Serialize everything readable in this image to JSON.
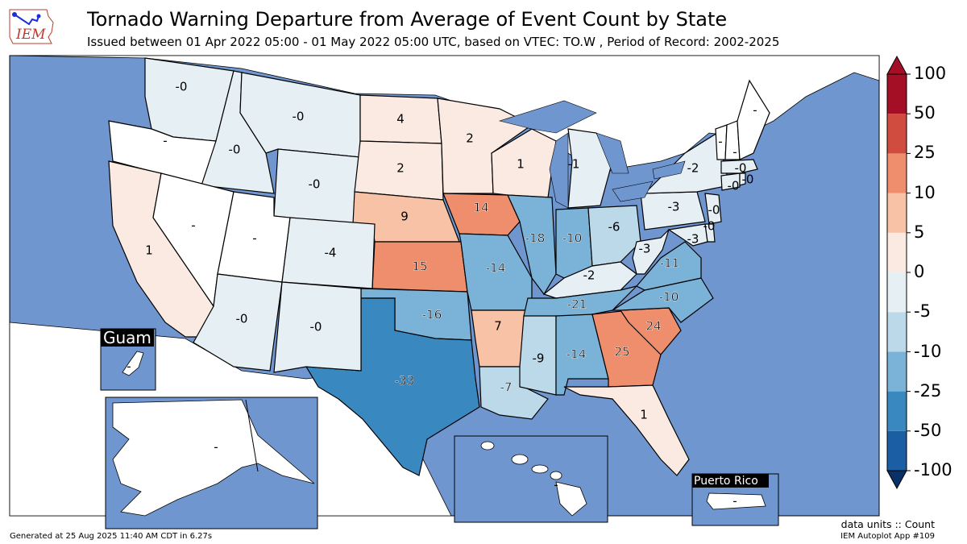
{
  "title": "Tornado Warning Departure from Average of Event Count by State",
  "subtitle": "Issued between 01 Apr 2022 05:00 - 01 May 2022 05:00 UTC, based on VTEC: TO.W  , Period of Record: 2002-2025",
  "logo": {
    "text": "IEM"
  },
  "colors": {
    "ocean": "#7096cf",
    "land_white": "#ffffff",
    "border": "#000000"
  },
  "insets": {
    "guam": "Guam",
    "puerto_rico": "Puerto Rico"
  },
  "colorbar": {
    "labels": [
      "100",
      "50",
      "25",
      "10",
      "5",
      "0",
      "-5",
      "-10",
      "-25",
      "-50",
      "-100"
    ],
    "colors": [
      "#a50f26",
      "#cf4c3e",
      "#ee8e6c",
      "#f8c2a6",
      "#faeae1",
      "#e6eff4",
      "#bcd9ea",
      "#7ab3d7",
      "#3a88c0",
      "#1b5ea3",
      "#0a3167"
    ]
  },
  "footer": {
    "generated": "Generated at 25 Aug 2025 11:40 AM CDT in 6.27s",
    "units": "data units :: Count",
    "app": "IEM Autoplot App #109"
  },
  "states": {
    "WA": "-0",
    "OR": "-",
    "ID": "-0",
    "MT": "-0",
    "WY": "-0",
    "ND": "4",
    "SD": "2",
    "MN": "2",
    "WI": "1",
    "MI": "-1",
    "NE": "9",
    "IA": "14",
    "CA": "1",
    "NV": "-",
    "UT": "-",
    "CO": "-4",
    "KS": "15",
    "MO": "-14",
    "IL": "-18",
    "IN": "-10",
    "OH": "-6",
    "PA": "-3",
    "NY": "-2",
    "AZ": "-0",
    "NM": "-0",
    "OK": "-16",
    "AR": "7",
    "TX": "-33",
    "LA": "-7",
    "MS": "-9",
    "AL": "-14",
    "GA": "25",
    "SC": "24",
    "NC": "-10",
    "TN": "-21",
    "KY": "-2",
    "WV": "-3",
    "VA": "-11",
    "FL": "1",
    "NJ": "-0",
    "DE": "-0",
    "MD": "-3",
    "CT": "-0",
    "RI": "-0",
    "MA": "-0",
    "VT": "-",
    "NH": "-",
    "ME": "-",
    "AK": "-",
    "HI": "-",
    "GU": "-",
    "PR": "-"
  }
}
